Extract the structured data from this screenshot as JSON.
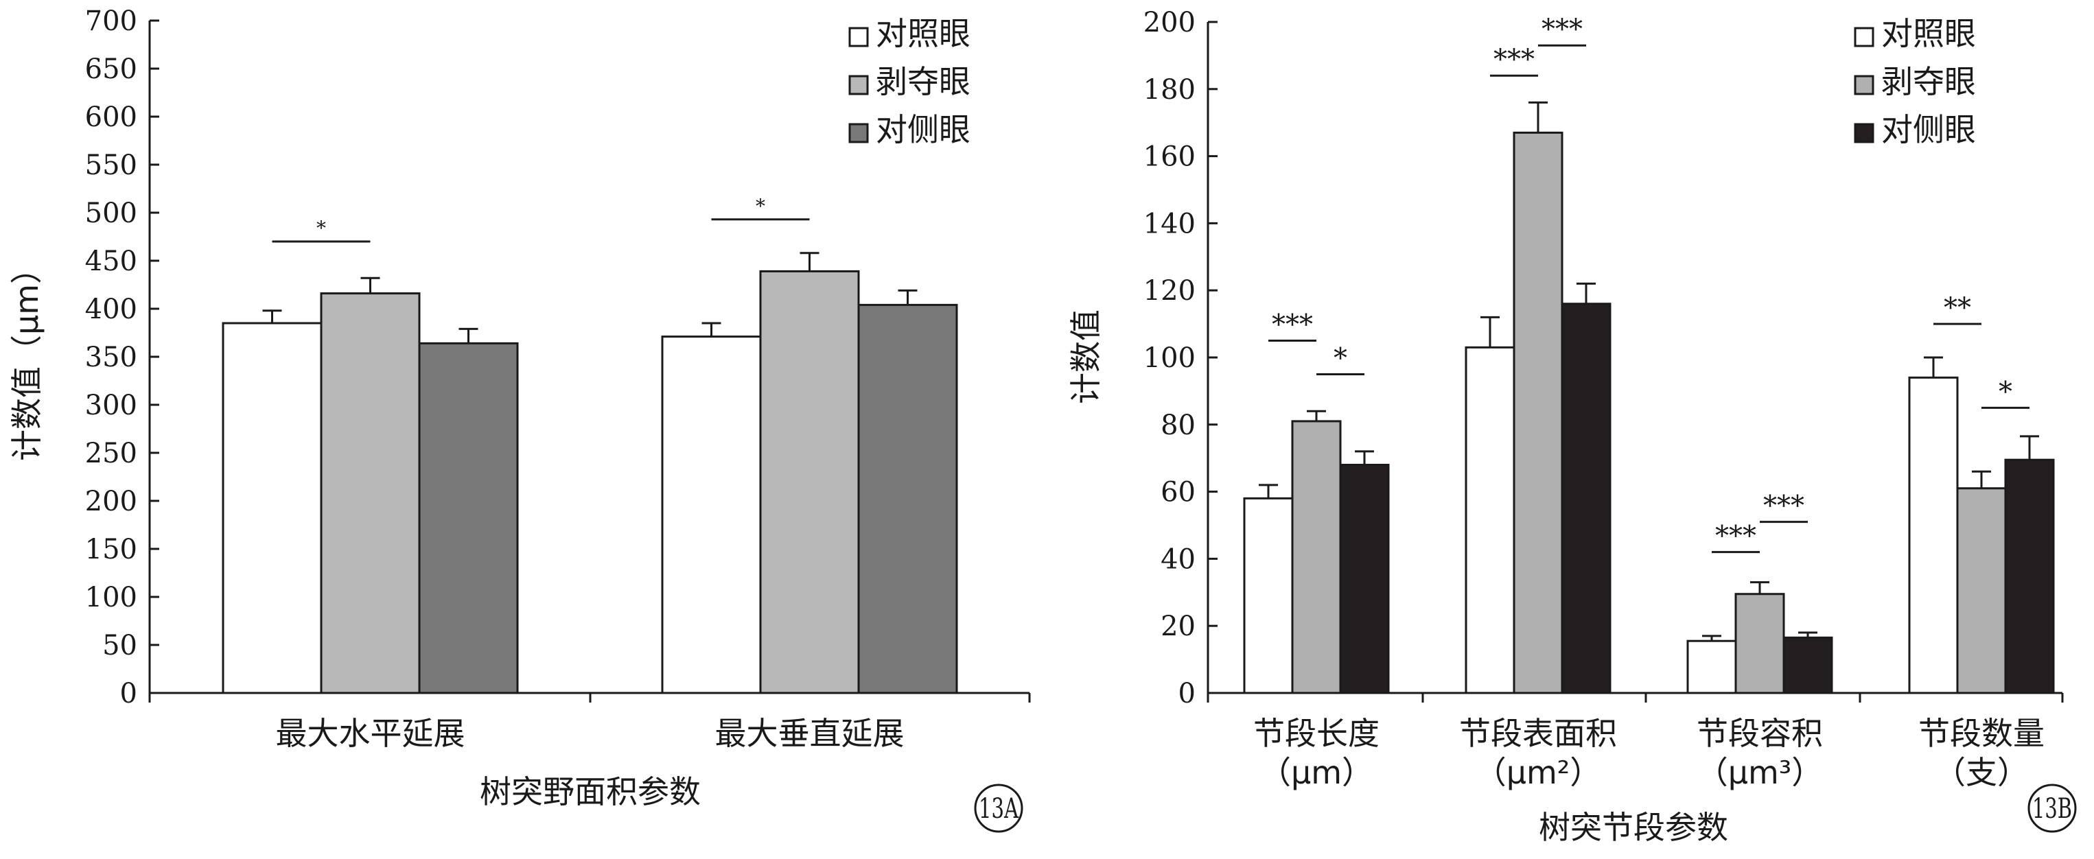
{
  "chart_data": [
    {
      "panel": "13A",
      "type": "bar",
      "title": "",
      "ylabel": "计数值（μm）",
      "xlabel": "树突野面积参数",
      "ylim": [
        0,
        700
      ],
      "ytick_step": 50,
      "yticks": [
        "0",
        "50",
        "100",
        "150",
        "200",
        "250",
        "300",
        "350",
        "400",
        "450",
        "500",
        "550",
        "600",
        "650",
        "700"
      ],
      "categories": [
        "最大水平延展",
        "最大垂直延展"
      ],
      "series": [
        {
          "name": "对照眼",
          "color": "#ffffff",
          "values": [
            385,
            371
          ],
          "errors": [
            13,
            14
          ]
        },
        {
          "name": "剥夺眼",
          "color": "#b8b8b8",
          "values": [
            416,
            439
          ],
          "errors": [
            16,
            19
          ]
        },
        {
          "name": "对侧眼",
          "color": "#787878",
          "values": [
            364,
            404
          ],
          "errors": [
            15,
            15
          ]
        }
      ],
      "significance": [
        {
          "category": 0,
          "from": 0,
          "to": 1,
          "label": "*",
          "y": 470
        },
        {
          "category": 1,
          "from": 0,
          "to": 1,
          "label": "*",
          "y": 493
        }
      ],
      "legend": "top-right"
    },
    {
      "panel": "13B",
      "type": "bar",
      "title": "",
      "ylabel": "计数值",
      "xlabel": "树突节段参数",
      "ylim": [
        0,
        200
      ],
      "ytick_step": 20,
      "yticks": [
        "0",
        "20",
        "40",
        "60",
        "80",
        "100",
        "120",
        "140",
        "160",
        "180",
        "200"
      ],
      "categories": [
        "节段长度",
        "节段表面积",
        "节段容积",
        "节段数量"
      ],
      "category_units": [
        "（μm）",
        "（μm²）",
        "（μm³）",
        "（支）"
      ],
      "series": [
        {
          "name": "对照眼",
          "color": "#ffffff",
          "values": [
            58,
            103,
            15.5,
            94
          ],
          "errors": [
            4,
            9,
            1.5,
            6
          ]
        },
        {
          "name": "剥夺眼",
          "color": "#b0b0b0",
          "values": [
            81,
            167,
            29.5,
            61
          ],
          "errors": [
            3,
            9,
            3.5,
            5
          ]
        },
        {
          "name": "对侧眼",
          "color": "#231f20",
          "values": [
            68,
            116,
            16.5,
            69.5
          ],
          "errors": [
            4,
            6,
            1.5,
            7
          ]
        }
      ],
      "significance": [
        {
          "category": 0,
          "from": 0,
          "to": 1,
          "label": "***",
          "y": 105
        },
        {
          "category": 0,
          "from": 1,
          "to": 2,
          "label": "*",
          "y": 95
        },
        {
          "category": 1,
          "from": 0,
          "to": 1,
          "label": "***",
          "y": 184
        },
        {
          "category": 1,
          "from": 1,
          "to": 2,
          "label": "***",
          "y": 193
        },
        {
          "category": 2,
          "from": 0,
          "to": 1,
          "label": "***",
          "y": 42
        },
        {
          "category": 2,
          "from": 1,
          "to": 2,
          "label": "***",
          "y": 51
        },
        {
          "category": 3,
          "from": 0,
          "to": 1,
          "label": "**",
          "y": 110
        },
        {
          "category": 3,
          "from": 1,
          "to": 2,
          "label": "*",
          "y": 85
        }
      ],
      "legend": "top-right"
    }
  ]
}
